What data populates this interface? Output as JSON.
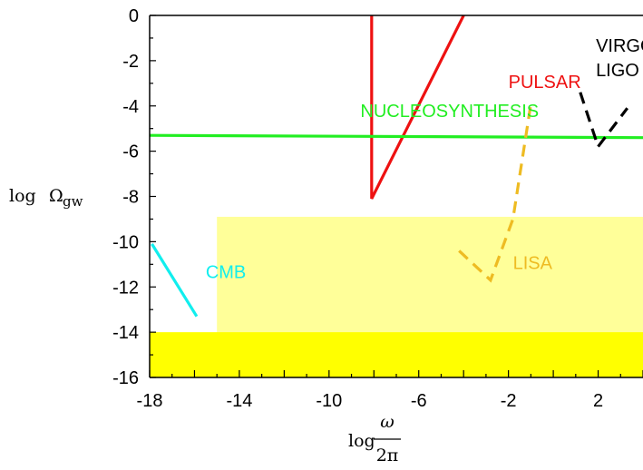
{
  "chart_data": {
    "type": "line",
    "title": "",
    "xlabel": {
      "prefix": "log",
      "numerator": "ω",
      "denominator": "2π"
    },
    "ylabel": {
      "prefix": "log",
      "symbol": "Ω",
      "subscript": "gw"
    },
    "xlim": [
      -18,
      4
    ],
    "ylim": [
      -16,
      0
    ],
    "xticks": [
      -18,
      -14,
      -10,
      -6,
      -2,
      2
    ],
    "yticks": [
      0,
      -2,
      -4,
      -6,
      -8,
      -10,
      -12,
      -14,
      -16
    ],
    "grid": false,
    "regions": [
      {
        "name": "light-band",
        "x": [
          -15,
          4
        ],
        "y": [
          -16,
          -8.9
        ],
        "color": "#ffff99"
      },
      {
        "name": "dark-band",
        "x": [
          -18,
          4
        ],
        "y": [
          -16,
          -14
        ],
        "color": "#ffff00"
      }
    ],
    "series": [
      {
        "name": "PULSAR",
        "color": "#ee1111",
        "dash": "solid",
        "x": [
          -8.1,
          -8.1,
          -4.0
        ],
        "y": [
          0,
          -8.1,
          0
        ],
        "label_at": {
          "x": -2.0,
          "y": -3.2
        }
      },
      {
        "name": "NUCLEOSYNTHESIS",
        "color": "#22ee22",
        "dash": "solid",
        "x": [
          -18,
          4
        ],
        "y": [
          -5.3,
          -5.4
        ],
        "label_at": {
          "x": -8.6,
          "y": -4.5
        }
      },
      {
        "name": "VIRGO/\nLIGO",
        "color": "#000000",
        "dash": "dashed",
        "x": [
          1.2,
          2.0,
          3.3
        ],
        "y": [
          -3.4,
          -5.8,
          -4.1
        ],
        "label_at": {
          "x": 1.9,
          "y": -1.6
        }
      },
      {
        "name": "LISA",
        "color": "#eebb22",
        "dash": "dashed",
        "x": [
          -4.2,
          -2.8,
          -1.8,
          -1.0
        ],
        "y": [
          -10.4,
          -11.7,
          -9.0,
          -3.9
        ],
        "label_at": {
          "x": -1.8,
          "y": -11.2
        }
      },
      {
        "name": "CMB",
        "color": "#11eeee",
        "dash": "solid",
        "x": [
          -17.9,
          -15.9
        ],
        "y": [
          -10.1,
          -13.3
        ],
        "label_at": {
          "x": -15.5,
          "y": -11.6
        }
      }
    ]
  }
}
